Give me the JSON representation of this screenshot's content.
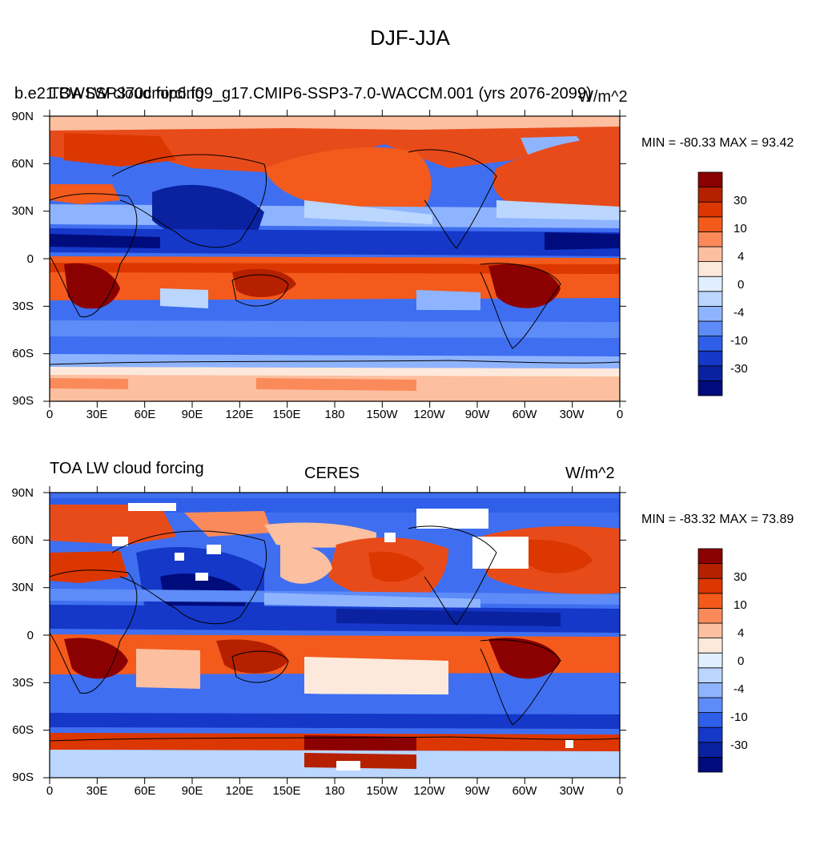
{
  "figure": {
    "title": "DJF-JJA",
    "lon_ticks": [
      "0",
      "30E",
      "60E",
      "90E",
      "120E",
      "150E",
      "180",
      "150W",
      "120W",
      "90W",
      "60W",
      "30W",
      "0"
    ],
    "lat_ticks": [
      "90N",
      "60N",
      "30N",
      "0",
      "30S",
      "60S",
      "90S"
    ]
  },
  "panels": [
    {
      "left_label": "TOA LW cloud forcing",
      "case_label": "b.e21.BWSSP370cmip6.f09_g17.CMIP6-SSP3-7.0-WACCM.001 (yrs 2076-2099)",
      "units": "W/m^2",
      "minmax": "MIN = -80.33 MAX =  93.42",
      "colorbar_labels": [
        "30",
        "10",
        "4",
        "0",
        "-4",
        "-10",
        "-30"
      ]
    },
    {
      "left_label": "TOA LW cloud forcing",
      "case_label": "CERES",
      "units": "W/m^2",
      "minmax": "MIN = -83.32 MAX =  73.89",
      "colorbar_labels": [
        "30",
        "10",
        "4",
        "0",
        "-4",
        "-10",
        "-30"
      ]
    }
  ],
  "colorbar_colors": [
    "#8b0000",
    "#b52000",
    "#dc3700",
    "#f35a1c",
    "#fb8a5a",
    "#fcbfa0",
    "#fde9dc",
    "#e0eeff",
    "#bbd6ff",
    "#8fb4ff",
    "#5d8bf7",
    "#2f5fe8",
    "#1538c9",
    "#0a22a0",
    "#000c7c"
  ]
}
